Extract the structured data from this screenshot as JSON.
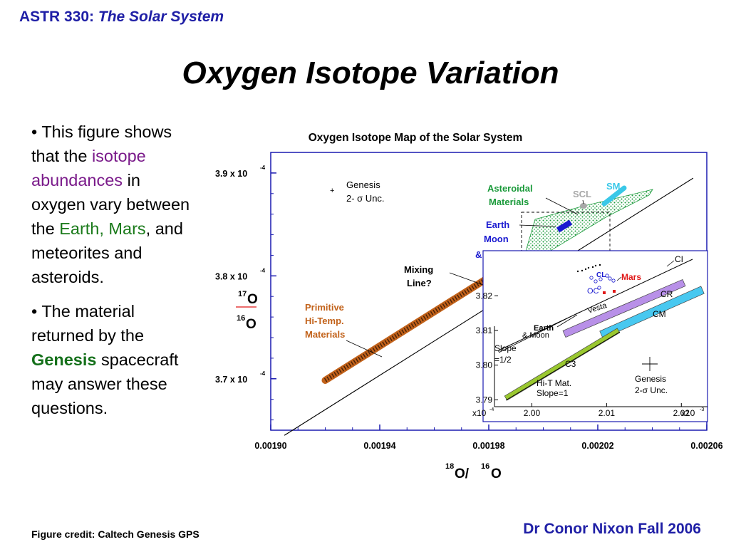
{
  "header": {
    "course": "ASTR 330:",
    "subtitle": "The Solar System"
  },
  "title": "Oxygen Isotope Variation",
  "bullets": {
    "b1_part1": "• This figure shows that the ",
    "b1_highlight": "isotope abundances",
    "b1_part2": " in oxygen vary between the ",
    "b1_green": "Earth, Mars",
    "b1_part3": ", and meteorites and asteroids.",
    "b2_part1": "• The material returned by the ",
    "b2_highlight": "Genesis",
    "b2_part2": " spacecraft may answer these questions."
  },
  "credit": "Figure credit: Caltech Genesis GPS",
  "footer": "Dr Conor Nixon   Fall 2006",
  "chart_data": [
    {
      "type": "scatter",
      "title": "Oxygen Isotope Map of the Solar System",
      "xlabel_base": "O/",
      "xlabel_sup1": "18",
      "xlabel_sup2": "16",
      "xlabel_tail": "O",
      "ylabel_num_sup": "17",
      "ylabel_num": "O",
      "ylabel_den_sup": "16",
      "ylabel_den": "O",
      "xlim": [
        0.0019,
        0.00206
      ],
      "ylim": [
        0.000365,
        0.000392
      ],
      "x_ticks": [
        "0.00190",
        "0.00194",
        "0.00198",
        "0.00202",
        "0.00206"
      ],
      "y_ticks": [
        {
          "value": 0.00039,
          "mantissa": "3.9 x 10",
          "exp": "-4"
        },
        {
          "value": 0.00038,
          "mantissa": "3.8 x 10",
          "exp": "-4"
        },
        {
          "value": 0.00037,
          "mantissa": "3.7 x 10",
          "exp": "-4"
        }
      ],
      "mixing_line": {
        "x": [
          0.001905,
          0.002055
        ],
        "y": [
          0.0003645,
          0.0003895
        ]
      },
      "primitive_band": {
        "x": [
          0.00192,
          0.00198
        ],
        "y": [
          0.00036985,
          0.00037985
        ]
      },
      "labels": {
        "genesis_marker": "+",
        "genesis": "Genesis",
        "genesis_unc": "2- σ Unc.",
        "asteroidal": [
          "Asteroidal",
          "Materials"
        ],
        "scl": "SCL",
        "sm": "SM",
        "earth_moon_mars": [
          "Earth",
          "Moon",
          "& Mars"
        ],
        "mixing": [
          "Mixing",
          "Line?"
        ],
        "primitive": [
          "Primitive",
          "Hi-Temp.",
          "Materials"
        ]
      },
      "colors": {
        "axis": "#1a1ab0",
        "primitive": "#c2621a",
        "asteroidal": "#1a9a3a",
        "sm": "#3ac8e8",
        "scl": "#a8a8a8",
        "earth": "#1a1ad0"
      }
    },
    {
      "type": "scatter",
      "title": "",
      "xlim": [
        1.995,
        2.0235
      ],
      "ylim": [
        3.788,
        3.833
      ],
      "x_ticks": [
        "2.00",
        "2.01",
        "2.02"
      ],
      "x_mult_left": "x10",
      "x_mult_left_exp": "-4",
      "x_mult_right": "x10",
      "x_mult_right_exp": "-3",
      "y_ticks": [
        "3.82",
        "3.81",
        "3.80",
        "3.79"
      ],
      "labels": {
        "ci": "CI",
        "cl": "CL",
        "mars": "Mars",
        "cr": "CR",
        "cm": "CM",
        "vesta": "Vesta",
        "earth": "Earth",
        "and_moon": "& Moon",
        "slope": [
          "Slope",
          "=1/2"
        ],
        "c3": "C3",
        "hit": [
          "Hi-T Mat.",
          "Slope=1"
        ],
        "genesis": "Genesis",
        "genesis_unc": "2-σ  Unc.",
        "oc": "OC"
      },
      "colors": {
        "cr": "#b890e8",
        "cm": "#48c8f0",
        "hit": "#9ac830",
        "mars": "#e01818",
        "cl": "#1a1ad0"
      }
    }
  ]
}
